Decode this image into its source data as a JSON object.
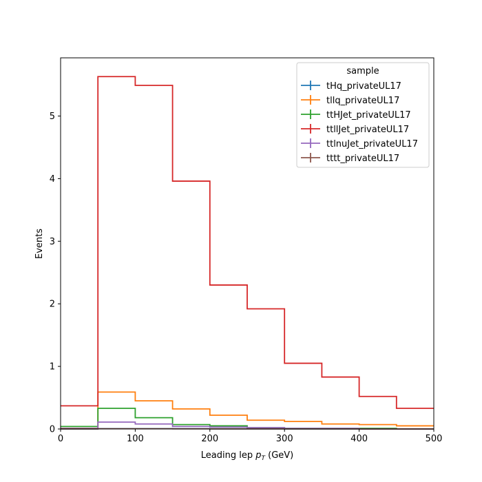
{
  "chart_data": {
    "type": "step-histogram",
    "xlabel_main": "Leading lep ",
    "xlabel_p": "p",
    "xlabel_sub": "T",
    "xlabel_unit": " (GeV)",
    "ylabel": "Events",
    "xlim": [
      0,
      500
    ],
    "ylim": [
      0,
      5.93
    ],
    "xticks": [
      "0",
      "100",
      "200",
      "300",
      "400",
      "500"
    ],
    "xtick_values": [
      0,
      100,
      200,
      300,
      400,
      500
    ],
    "yticks": [
      "0",
      "1",
      "2",
      "3",
      "4",
      "5"
    ],
    "ytick_values": [
      0,
      1,
      2,
      3,
      4,
      5
    ],
    "bin_edges": [
      0,
      50,
      100,
      150,
      200,
      250,
      300,
      350,
      400,
      450,
      500
    ],
    "legend_title": "sample",
    "legend_position": "top-right",
    "series": [
      {
        "name": "tHq_privateUL17",
        "color": "#1f77b4",
        "values": [
          0.002,
          0.005,
          0.005,
          0.004,
          0.003,
          0.003,
          0.002,
          0.002,
          0.001,
          0.001
        ]
      },
      {
        "name": "tllq_privateUL17",
        "color": "#ff7f0e",
        "values": [
          0.01,
          0.59,
          0.45,
          0.32,
          0.22,
          0.14,
          0.12,
          0.08,
          0.07,
          0.05
        ]
      },
      {
        "name": "ttHJet_privateUL17",
        "color": "#2ca02c",
        "values": [
          0.04,
          0.33,
          0.18,
          0.07,
          0.05,
          0.02,
          0.01,
          0.01,
          0.01,
          0.0
        ]
      },
      {
        "name": "ttllJet_privateUL17",
        "color": "#d62728",
        "values": [
          0.37,
          5.63,
          5.49,
          3.96,
          2.3,
          1.92,
          1.05,
          0.83,
          0.52,
          0.33
        ]
      },
      {
        "name": "ttlnuJet_privateUL17",
        "color": "#9467bd",
        "values": [
          0.01,
          0.11,
          0.08,
          0.04,
          0.03,
          0.02,
          0.01,
          0.01,
          0.0,
          0.0
        ]
      },
      {
        "name": "tttt_privateUL17",
        "color": "#8c564b",
        "values": [
          0.002,
          0.004,
          0.004,
          0.003,
          0.002,
          0.002,
          0.001,
          0.001,
          0.0,
          0.0
        ]
      }
    ]
  }
}
